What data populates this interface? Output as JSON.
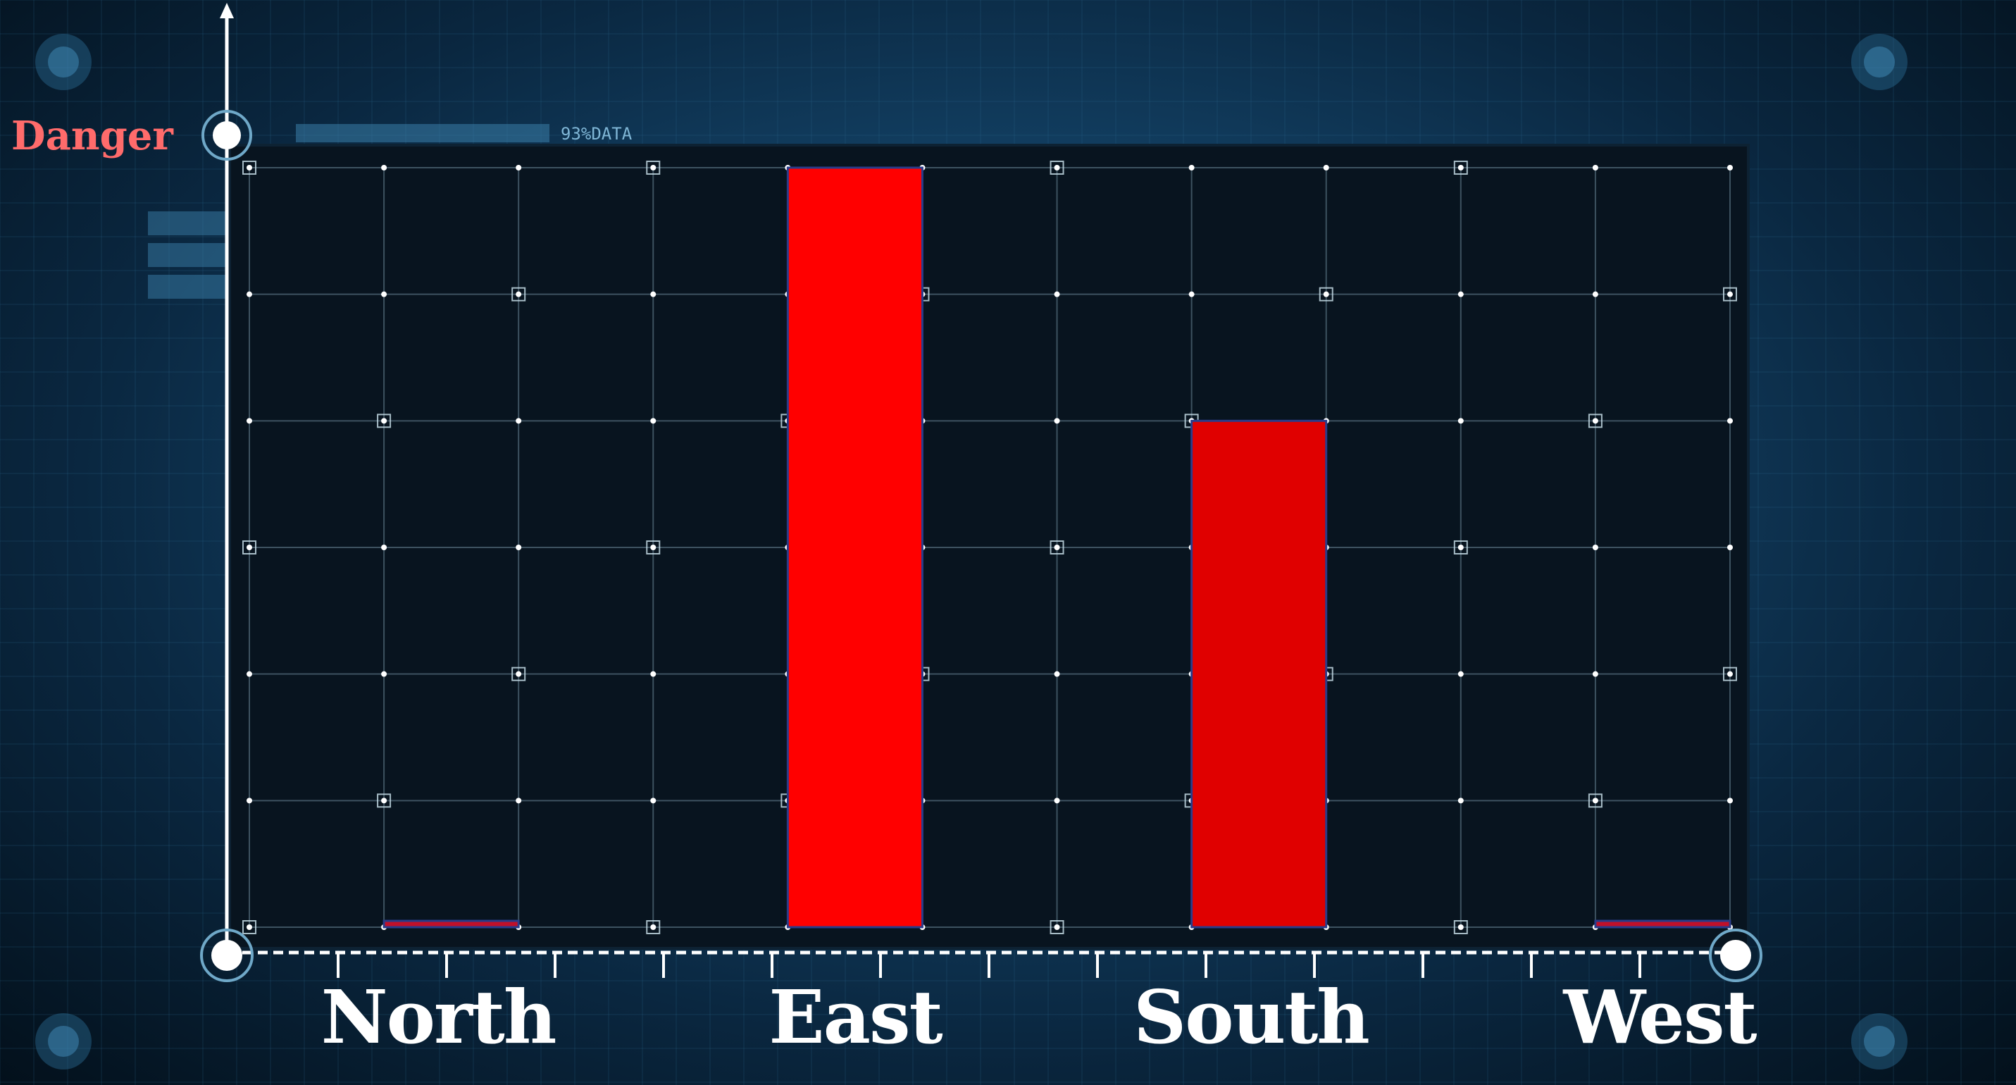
{
  "chart_data": {
    "type": "bar",
    "title": "",
    "xlabel": "",
    "ylabel": "Danger",
    "categories": [
      "North",
      "East",
      "South",
      "West"
    ],
    "values": [
      0.05,
      6,
      4,
      0.05
    ],
    "ylim": [
      0,
      6
    ],
    "grid": true,
    "legend": "none",
    "bar_colors": [
      "#c0102a",
      "#ff0000",
      "#e00000",
      "#c0102a"
    ]
  },
  "decoration": {
    "hud_text": "93%DATA"
  },
  "colors": {
    "background": "#0a2740",
    "plot_bg": "#08141f",
    "grid": "#9fc6d8",
    "axis": "#ffffff",
    "ylabel": "#ff6b6b"
  }
}
